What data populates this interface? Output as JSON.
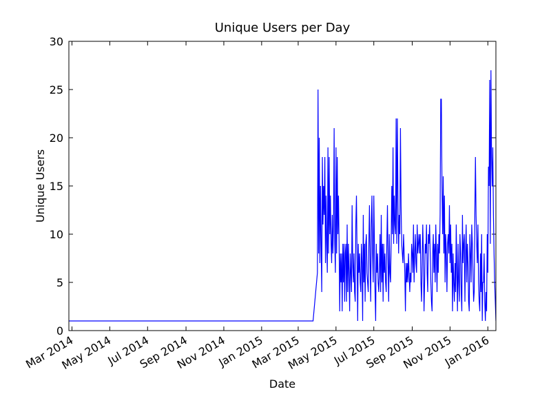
{
  "chart_data": {
    "type": "line",
    "title": "Unique Users per Day",
    "x_label": "Date",
    "y_label": "Unique Users",
    "color": "#0000ff",
    "xlim": [
      "2014-02-24",
      "2016-01-14"
    ],
    "xticks": [
      {
        "value": "2014-03-01",
        "label": "Mar 2014"
      },
      {
        "value": "2014-05-01",
        "label": "May 2014"
      },
      {
        "value": "2014-07-01",
        "label": "Jul 2014"
      },
      {
        "value": "2014-09-01",
        "label": "Sep 2014"
      },
      {
        "value": "2014-11-01",
        "label": "Nov 2014"
      },
      {
        "value": "2015-01-01",
        "label": "Jan 2015"
      },
      {
        "value": "2015-03-01",
        "label": "Mar 2015"
      },
      {
        "value": "2015-05-01",
        "label": "May 2015"
      },
      {
        "value": "2015-07-01",
        "label": "Jul 2015"
      },
      {
        "value": "2015-09-01",
        "label": "Sep 2015"
      },
      {
        "value": "2015-11-01",
        "label": "Nov 2015"
      },
      {
        "value": "2016-01-01",
        "label": "Jan 2016"
      }
    ],
    "ylim": [
      0,
      30
    ],
    "yticks": [
      0,
      5,
      10,
      15,
      20,
      25,
      30
    ],
    "x": [
      "2014-02-24",
      "2015-03-25",
      "2015-04-01",
      "2015-04-02",
      "2015-04-03",
      "2015-04-04",
      "2015-04-05",
      "2015-04-06",
      "2015-04-07",
      "2015-04-08",
      "2015-04-09",
      "2015-04-10",
      "2015-04-11",
      "2015-04-12",
      "2015-04-13",
      "2015-04-14",
      "2015-04-15",
      "2015-04-16",
      "2015-04-17",
      "2015-04-18",
      "2015-04-19",
      "2015-04-20",
      "2015-04-21",
      "2015-04-22",
      "2015-04-23",
      "2015-04-24",
      "2015-04-25",
      "2015-04-26",
      "2015-04-27",
      "2015-04-28",
      "2015-04-29",
      "2015-04-30",
      "2015-05-01",
      "2015-05-02",
      "2015-05-03",
      "2015-05-04",
      "2015-05-05",
      "2015-05-06",
      "2015-05-07",
      "2015-05-08",
      "2015-05-09",
      "2015-05-10",
      "2015-05-11",
      "2015-05-12",
      "2015-05-13",
      "2015-05-14",
      "2015-05-15",
      "2015-05-16",
      "2015-05-17",
      "2015-05-18",
      "2015-05-19",
      "2015-05-20",
      "2015-05-21",
      "2015-05-22",
      "2015-05-23",
      "2015-05-24",
      "2015-05-25",
      "2015-05-26",
      "2015-05-27",
      "2015-05-28",
      "2015-05-29",
      "2015-05-30",
      "2015-05-31",
      "2015-06-01",
      "2015-06-02",
      "2015-06-03",
      "2015-06-04",
      "2015-06-05",
      "2015-06-06",
      "2015-06-07",
      "2015-06-08",
      "2015-06-09",
      "2015-06-10",
      "2015-06-11",
      "2015-06-12",
      "2015-06-13",
      "2015-06-14",
      "2015-06-15",
      "2015-06-16",
      "2015-06-17",
      "2015-06-18",
      "2015-06-19",
      "2015-06-20",
      "2015-06-21",
      "2015-06-22",
      "2015-06-23",
      "2015-06-24",
      "2015-06-25",
      "2015-06-26",
      "2015-06-27",
      "2015-06-28",
      "2015-06-29",
      "2015-06-30",
      "2015-07-01",
      "2015-07-02",
      "2015-07-03",
      "2015-07-04",
      "2015-07-05",
      "2015-07-06",
      "2015-07-07",
      "2015-07-08",
      "2015-07-09",
      "2015-07-10",
      "2015-07-11",
      "2015-07-12",
      "2015-07-13",
      "2015-07-14",
      "2015-07-15",
      "2015-07-16",
      "2015-07-17",
      "2015-07-18",
      "2015-07-19",
      "2015-07-20",
      "2015-07-21",
      "2015-07-22",
      "2015-07-23",
      "2015-07-24",
      "2015-07-25",
      "2015-07-26",
      "2015-07-27",
      "2015-07-28",
      "2015-07-29",
      "2015-07-30",
      "2015-07-31",
      "2015-08-01",
      "2015-08-02",
      "2015-08-03",
      "2015-08-04",
      "2015-08-05",
      "2015-08-06",
      "2015-08-07",
      "2015-08-08",
      "2015-08-09",
      "2015-08-10",
      "2015-08-11",
      "2015-08-12",
      "2015-08-13",
      "2015-08-14",
      "2015-08-15",
      "2015-08-16",
      "2015-08-17",
      "2015-08-18",
      "2015-08-19",
      "2015-08-20",
      "2015-08-21",
      "2015-08-22",
      "2015-08-23",
      "2015-08-24",
      "2015-08-25",
      "2015-08-26",
      "2015-08-27",
      "2015-08-28",
      "2015-08-29",
      "2015-08-30",
      "2015-08-31",
      "2015-09-01",
      "2015-09-02",
      "2015-09-03",
      "2015-09-04",
      "2015-09-05",
      "2015-09-06",
      "2015-09-07",
      "2015-09-08",
      "2015-09-09",
      "2015-09-10",
      "2015-09-11",
      "2015-09-12",
      "2015-09-13",
      "2015-09-14",
      "2015-09-15",
      "2015-09-16",
      "2015-09-17",
      "2015-09-18",
      "2015-09-19",
      "2015-09-20",
      "2015-09-21",
      "2015-09-22",
      "2015-09-23",
      "2015-09-24",
      "2015-09-25",
      "2015-09-26",
      "2015-09-27",
      "2015-09-28",
      "2015-09-29",
      "2015-09-30",
      "2015-10-01",
      "2015-10-02",
      "2015-10-03",
      "2015-10-04",
      "2015-10-05",
      "2015-10-06",
      "2015-10-07",
      "2015-10-08",
      "2015-10-09",
      "2015-10-10",
      "2015-10-11",
      "2015-10-12",
      "2015-10-13",
      "2015-10-14",
      "2015-10-15",
      "2015-10-16",
      "2015-10-17",
      "2015-10-18",
      "2015-10-19",
      "2015-10-20",
      "2015-10-21",
      "2015-10-22",
      "2015-10-23",
      "2015-10-24",
      "2015-10-25",
      "2015-10-26",
      "2015-10-27",
      "2015-10-28",
      "2015-10-29",
      "2015-10-30",
      "2015-10-31",
      "2015-11-01",
      "2015-11-02",
      "2015-11-03",
      "2015-11-04",
      "2015-11-05",
      "2015-11-06",
      "2015-11-07",
      "2015-11-08",
      "2015-11-09",
      "2015-11-10",
      "2015-11-11",
      "2015-11-12",
      "2015-11-13",
      "2015-11-14",
      "2015-11-15",
      "2015-11-16",
      "2015-11-17",
      "2015-11-18",
      "2015-11-19",
      "2015-11-20",
      "2015-11-21",
      "2015-11-22",
      "2015-11-23",
      "2015-11-24",
      "2015-11-25",
      "2015-11-26",
      "2015-11-27",
      "2015-11-28",
      "2015-11-29",
      "2015-11-30",
      "2015-12-01",
      "2015-12-02",
      "2015-12-03",
      "2015-12-04",
      "2015-12-05",
      "2015-12-06",
      "2015-12-07",
      "2015-12-08",
      "2015-12-09",
      "2015-12-10",
      "2015-12-11",
      "2015-12-12",
      "2015-12-13",
      "2015-12-14",
      "2015-12-15",
      "2015-12-16",
      "2015-12-17",
      "2015-12-18",
      "2015-12-19",
      "2015-12-20",
      "2015-12-21",
      "2015-12-22",
      "2015-12-23",
      "2015-12-24",
      "2015-12-25",
      "2015-12-26",
      "2015-12-27",
      "2015-12-28",
      "2015-12-29",
      "2015-12-30",
      "2015-12-31",
      "2016-01-01",
      "2016-01-02",
      "2016-01-03",
      "2016-01-04",
      "2016-01-05",
      "2016-01-06",
      "2016-01-07",
      "2016-01-08",
      "2016-01-09",
      "2016-01-10",
      "2016-01-11",
      "2016-01-12",
      "2016-01-13",
      "2016-01-14"
    ],
    "values": [
      1,
      1,
      6,
      25,
      8,
      20,
      7,
      15,
      9,
      4,
      18,
      11,
      15,
      12,
      18,
      7,
      14,
      9,
      6,
      19,
      8,
      18,
      10,
      14,
      9,
      7,
      12,
      8,
      11,
      21,
      9,
      6,
      19,
      8,
      18,
      10,
      14,
      9,
      2,
      8,
      5,
      8,
      2,
      9,
      5,
      9,
      3,
      8,
      9,
      3,
      11,
      4,
      9,
      6,
      2,
      8,
      6,
      4,
      13,
      7,
      5,
      8,
      4,
      3,
      11,
      14,
      8,
      1,
      9,
      6,
      8,
      5,
      4,
      9,
      7,
      1,
      12,
      5,
      9,
      3,
      9,
      10,
      6,
      5,
      4,
      9,
      13,
      7,
      3,
      11,
      14,
      8,
      5,
      14,
      9,
      4,
      1,
      9,
      6,
      8,
      5,
      4,
      6,
      10,
      4,
      12,
      5,
      9,
      3,
      9,
      6,
      8,
      5,
      4,
      9,
      13,
      7,
      3,
      10,
      6,
      5,
      9,
      15,
      10,
      19,
      9,
      14,
      11,
      10,
      22,
      9,
      22,
      14,
      8,
      12,
      10,
      21,
      13,
      9,
      8,
      7,
      10,
      8,
      6,
      2,
      7,
      5,
      7,
      5,
      8,
      6,
      4,
      6,
      5,
      9,
      8,
      6,
      11,
      5,
      8,
      10,
      7,
      6,
      11,
      8,
      9,
      10,
      8,
      10,
      5,
      3,
      7,
      11,
      8,
      2,
      5,
      9,
      8,
      11,
      6,
      4,
      10,
      9,
      11,
      8,
      5,
      3,
      2,
      8,
      10,
      6,
      9,
      5,
      11,
      8,
      4,
      9,
      6,
      10,
      8,
      12,
      24,
      24,
      15,
      10,
      16,
      8,
      14,
      5,
      10,
      8,
      4,
      9,
      10,
      8,
      13,
      7,
      11,
      6,
      9,
      2,
      8,
      5,
      3,
      7,
      4,
      11,
      6,
      2,
      9,
      5,
      3,
      10,
      8,
      4,
      2,
      12,
      7,
      9,
      10,
      3,
      8,
      11,
      5,
      9,
      7,
      3,
      2,
      10,
      8,
      5,
      11,
      9,
      6,
      3,
      4,
      12,
      18,
      12,
      9,
      7,
      11,
      5,
      3,
      2,
      8,
      4,
      10,
      1,
      5,
      5,
      8,
      3,
      1,
      4,
      2,
      10,
      6,
      17,
      15,
      26,
      9,
      27,
      18,
      15,
      19,
      12,
      8,
      5,
      3,
      1
    ]
  }
}
